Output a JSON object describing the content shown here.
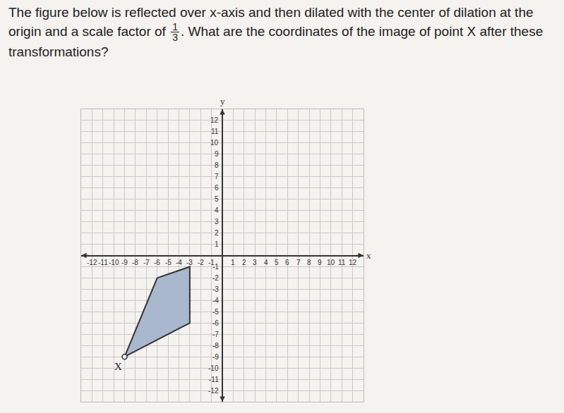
{
  "question": {
    "before": "The figure below is reflected over x-axis and then dilated with the center of dilation at the origin and a scale factor of",
    "fraction": {
      "numerator": "1",
      "denominator": "3"
    },
    "after": ". What are the coordinates of the image of point X after these transformations?"
  },
  "chart_data": {
    "type": "polygon",
    "x": [
      -6,
      -3,
      -3,
      -9
    ],
    "y": [
      -2,
      -1,
      -6,
      -9
    ],
    "color": "#a9b8cf",
    "point_label": {
      "text": "X",
      "x": -9,
      "y": -9
    },
    "x_label": "x",
    "y_label": "y",
    "xlim": [
      -13,
      13
    ],
    "ylim": [
      -13,
      13
    ],
    "xticks": [
      -12,
      -11,
      -10,
      -9,
      -8,
      -7,
      -6,
      -5,
      -4,
      -3,
      -2,
      -1,
      1,
      2,
      3,
      4,
      5,
      6,
      7,
      8,
      9,
      10,
      11,
      12
    ],
    "yticks": [
      -12,
      -11,
      -10,
      -9,
      -8,
      -7,
      -6,
      -5,
      -4,
      -3,
      -2,
      -1,
      1,
      2,
      3,
      4,
      5,
      6,
      7,
      8,
      9,
      10,
      11,
      12
    ],
    "grid": true
  }
}
